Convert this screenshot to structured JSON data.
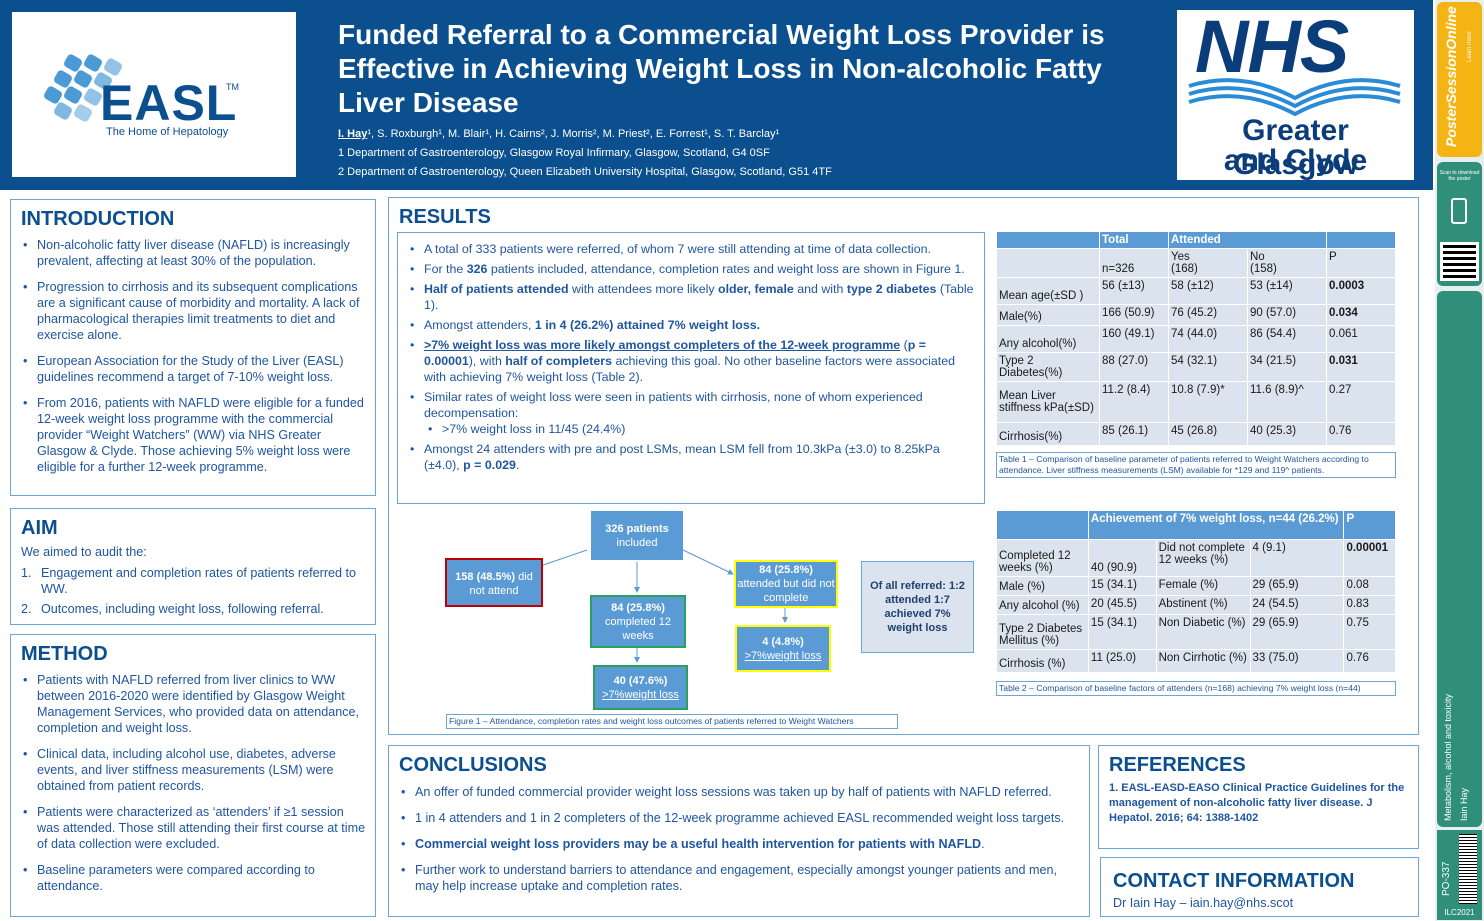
{
  "header": {
    "title": "Funded Referral to a Commercial Weight Loss Provider is Effective in Achieving Weight Loss in Non-alcoholic Fatty Liver Disease",
    "lead_author": "I. Hay",
    "authors_rest": "¹, S. Roxburgh¹, M. Blair¹, H. Cairns², J. Morris², M. Priest², E. Forrest¹, S. T. Barclay¹",
    "affiliation1": "1 Department of Gastroenterology, Glasgow Royal Infirmary, Glasgow, Scotland, G4 0SF",
    "affiliation2": "2 Department of Gastroenterology, Queen Elizabeth University Hospital, Glasgow, Scotland, G51 4TF"
  },
  "easl": {
    "word": "EASL",
    "tm": "TM",
    "tagline": "The Home of Hepatology"
  },
  "nhs": {
    "word": "NHS",
    "line1": "Greater Glasgow",
    "line2": "and Clyde"
  },
  "strip": {
    "pso": "PosterSessionOnline",
    "pso_small": "Learn more",
    "scan": "Scan to download the poster",
    "topic": "Metabolism, alcohol and toxicity",
    "author": "Iain Hay",
    "code": "PO-337",
    "congress": "ILC2021"
  },
  "intro": {
    "heading": "INTRODUCTION",
    "items": [
      "Non-alcoholic fatty liver disease (NAFLD) is  increasingly prevalent, affecting at least 30% of the population.",
      "Progression to cirrhosis and its subsequent complications are a significant cause of morbidity and mortality. A lack of pharmacological therapies limit treatments to diet and exercise alone.",
      "European Association for the Study of the Liver (EASL) guidelines recommend a target of 7-10% weight loss.",
      "From 2016, patients with NAFLD were eligible for a funded 12-week weight loss programme with the commercial provider “Weight Watchers” (WW) via NHS Greater Glasgow & Clyde. Those achieving 5% weight loss were eligible for a further 12-week programme."
    ]
  },
  "aim": {
    "heading": "AIM",
    "intro": "We aimed to audit the:",
    "items": [
      {
        "n": "1.",
        "text": "Engagement and completion rates of patients referred to WW."
      },
      {
        "n": "2.",
        "text": "Outcomes, including weight loss, following referral."
      }
    ]
  },
  "method": {
    "heading": "METHOD",
    "items": [
      "Patients with NAFLD referred from liver clinics to WW between 2016-2020 were identified by Glasgow Weight Management Services, who provided data on attendance, completion and weight loss.",
      "Clinical data, including alcohol use, diabetes, adverse events, and liver stiffness measurements (LSM) were obtained from patient records.",
      "Patients were characterized as ‘attenders’ if ≥1 session was attended. Those still attending their first course at time of data collection were excluded.",
      "Baseline parameters were compared according to attendance."
    ]
  },
  "results": {
    "heading": "RESULTS",
    "b1": "A total of 333 patients were referred, of whom 7 were still attending at time of data collection.",
    "b2a": "For the ",
    "b2b": "326",
    "b2c": " patients included, attendance, completion rates and weight loss are shown in Figure 1.",
    "b3a": "Half of patients attended",
    "b3b": " with attendees more likely ",
    "b3c": "older, female",
    "b3d": " and with ",
    "b3e": "type 2 diabetes",
    "b3f": " (Table 1).",
    "b4a": "Amongst attenders, ",
    "b4b": "1 in 4 (26.2%) attained 7% weight loss.",
    "b5a": ">7% weight loss was more likely amongst completers of the 12-week programme",
    "b5b": " (",
    "b5c": "p = 0.00001",
    "b5d": "), with ",
    "b5e": "half of completers",
    "b5f": " achieving this goal. No other baseline factors were associated with achieving 7% weight loss (Table 2).",
    "b6": "Similar rates of weight loss were seen in patients with cirrhosis, none of whom experienced decompensation:",
    "b6sub": ">7% weight loss in 11/45 (24.4%)",
    "b7a": "Amongst 24 attenders with pre and post LSMs, mean LSM fell from 10.3kPa (±3.0) to 8.25kPa (±4.0), ",
    "b7b": "p = 0.029",
    "b7c": "."
  },
  "flow": {
    "root_a": "326 patients",
    "root_b": "included",
    "notatt_a": "158 (48.5%)",
    "notatt_b": " did not attend",
    "comp_a": "84 (25.8%)",
    "comp_b": "completed 12 weeks",
    "incomp_a": "84 (25.8%)",
    "incomp_b": "attended but did not complete",
    "loss1_a": "40 (47.6%)",
    "loss1_b": ">7%weight loss",
    "loss2_a": "4 (4.8%)",
    "loss2_b": ">7%weight loss",
    "summary": "Of all referred: 1:2 attended 1:7 achieved 7% weight loss",
    "caption": "Figure 1 – Attendance, completion rates and weight loss outcomes of patients referred to Weight Watchers"
  },
  "table1": {
    "h_total": "Total",
    "h_attended": "Attended",
    "sub": [
      "n=326",
      "Yes\n(168)",
      "No\n(158)",
      "P"
    ],
    "rows": [
      {
        "label": "Mean age(±SD )",
        "total": "56 (±13)",
        "yes": "58 (±12)",
        "no": "53 (±14)",
        "p": "0.0003",
        "bold": true
      },
      {
        "label": "Male(%)",
        "total": "166 (50.9)",
        "yes": "76 (45.2)",
        "no": "90 (57.0)",
        "p": "0.034",
        "bold": true
      },
      {
        "label": "Any alcohol(%)",
        "total": "160 (49.1)",
        "yes": "74 (44.0)",
        "no": "86 (54.4)",
        "p": "0.061",
        "bold": false
      },
      {
        "label": "Type 2 Diabetes(%)",
        "total": "88 (27.0)",
        "yes": "54 (32.1)",
        "no": "34 (21.5)",
        "p": "0.031",
        "bold": true
      },
      {
        "label": "Mean Liver stiffness kPa(±SD)",
        "total": "11.2 (8.4)",
        "yes": "10.8 (7.9)*",
        "no": "11.6 (8.9)^",
        "p": "0.27",
        "bold": false
      },
      {
        "label": "Cirrhosis(%)",
        "total": "85 (26.1)",
        "yes": "45 (26.8)",
        "no": "40 (25.3)",
        "p": "0.76",
        "bold": false
      }
    ],
    "caption": "Table 1 – Comparison of baseline parameter of patients referred to Weight Watchers according to attendance. Liver stiffness measurements (LSM) available for *129 and 119^ patients."
  },
  "table2": {
    "header": "Achievement of 7% weight loss, n=44 (26.2%)",
    "h_p": "P",
    "rows": [
      {
        "label": "Completed 12 weeks (%)",
        "a": "40 (90.9)",
        "b_label": "Did not complete 12 weeks (%)",
        "b": "4 (9.1)",
        "p": "0.00001",
        "bold": true
      },
      {
        "label": "Male (%)",
        "a": "15 (34.1)",
        "b_label": "Female (%)",
        "b": "29 (65.9)",
        "p": "0.08",
        "bold": false
      },
      {
        "label": "Any alcohol (%)",
        "a": "20 (45.5)",
        "b_label": "Abstinent (%)",
        "b": "24 (54.5)",
        "p": "0.83",
        "bold": false
      },
      {
        "label": "Type 2 Diabetes Mellitus (%)",
        "a": "15 (34.1)",
        "b_label": "Non Diabetic (%)",
        "b": "29 (65.9)",
        "p": "0.75",
        "bold": false
      },
      {
        "label": "Cirrhosis (%)",
        "a": "11 (25.0)",
        "b_label": "Non Cirrhotic (%)",
        "b": "33 (75.0)",
        "p": "0.76",
        "bold": false
      }
    ],
    "caption": "Table 2 – Comparison of baseline factors of attenders (n=168) achieving 7% weight loss (n=44)"
  },
  "conclusions": {
    "heading": "CONCLUSIONS",
    "c1": "An offer of funded commercial provider weight loss sessions was taken up by half of patients with NAFLD referred.",
    "c2": "1 in 4 attenders and 1 in 2 completers of the 12-week programme achieved EASL recommended weight loss targets.",
    "c3a": "Commercial weight loss providers may be a useful health intervention for patients with NAFLD",
    "c3b": ".",
    "c4": "Further work to understand barriers to attendance and engagement, especially amongst younger patients and men, may help increase uptake and completion rates."
  },
  "references": {
    "heading": "REFERENCES",
    "text": "1. EASL-EASD-EASO Clinical Practice Guidelines for the management of non-alcoholic fatty liver disease. J Hepatol. 2016; 64: 1388-1402"
  },
  "contact": {
    "heading": "CONTACT INFORMATION",
    "text": "Dr Iain Hay – iain.hay@nhs.scot"
  }
}
